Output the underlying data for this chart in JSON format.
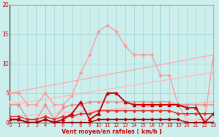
{
  "xlabel": "Vent moyen/en rafales ( km/h )",
  "xlim": [
    0,
    23
  ],
  "ylim": [
    0,
    20
  ],
  "xticks": [
    0,
    1,
    2,
    3,
    4,
    5,
    6,
    7,
    8,
    9,
    10,
    11,
    12,
    13,
    14,
    15,
    16,
    17,
    18,
    19,
    20,
    21,
    22,
    23
  ],
  "yticks": [
    0,
    5,
    10,
    15,
    20
  ],
  "bg_color": "#cceeed",
  "grid_color": "#aadddd",
  "series": [
    {
      "x": [
        0,
        23
      ],
      "y": [
        5.0,
        11.5
      ],
      "color": "#ffaaaa",
      "lw": 1.0,
      "marker": null,
      "ms": 0,
      "zorder": 2
    },
    {
      "x": [
        0,
        23
      ],
      "y": [
        3.0,
        8.5
      ],
      "color": "#ffbbbb",
      "lw": 1.0,
      "marker": null,
      "ms": 0,
      "zorder": 2
    },
    {
      "x": [
        0,
        23
      ],
      "y": [
        1.0,
        3.5
      ],
      "color": "#ffbbbb",
      "lw": 1.0,
      "marker": null,
      "ms": 0,
      "zorder": 2
    },
    {
      "x": [
        0,
        1,
        2,
        3,
        4,
        5,
        6,
        7,
        8,
        9,
        10,
        11,
        12,
        13,
        14,
        15,
        16,
        17,
        18,
        19,
        20,
        21,
        22,
        23
      ],
      "y": [
        5.0,
        5.0,
        3.0,
        3.0,
        5.0,
        3.0,
        3.0,
        4.5,
        8.5,
        11.5,
        15.5,
        16.5,
        15.5,
        13.0,
        11.5,
        11.5,
        11.5,
        8.0,
        8.0,
        3.0,
        0.5,
        0.5,
        0.5,
        11.5
      ],
      "color": "#ff9999",
      "lw": 1.0,
      "marker": "D",
      "ms": 2.0,
      "zorder": 3
    },
    {
      "x": [
        0,
        1,
        2,
        3,
        4,
        5,
        6,
        7,
        8,
        9,
        10,
        11,
        12,
        13,
        14,
        15,
        16,
        17,
        18,
        19,
        20,
        21,
        22,
        23
      ],
      "y": [
        3.0,
        3.0,
        0.5,
        0.5,
        3.0,
        0.5,
        2.5,
        3.0,
        3.0,
        3.5,
        3.5,
        3.5,
        3.5,
        3.5,
        3.5,
        3.5,
        3.5,
        3.5,
        3.5,
        3.0,
        3.0,
        3.0,
        3.0,
        3.0
      ],
      "color": "#ee8888",
      "lw": 1.0,
      "marker": "D",
      "ms": 2.0,
      "zorder": 4
    },
    {
      "x": [
        0,
        1,
        2,
        3,
        4,
        5,
        6,
        7,
        8,
        9,
        10,
        11,
        12,
        13,
        14,
        15,
        16,
        17,
        18,
        19,
        20,
        21,
        22,
        23
      ],
      "y": [
        1.0,
        1.0,
        0.5,
        0.5,
        1.0,
        0.5,
        1.0,
        1.0,
        1.5,
        1.5,
        2.0,
        2.0,
        2.0,
        2.0,
        2.0,
        2.0,
        2.0,
        2.0,
        2.0,
        1.5,
        1.5,
        1.5,
        1.5,
        1.5
      ],
      "color": "#dd3333",
      "lw": 1.2,
      "marker": "D",
      "ms": 2.0,
      "zorder": 5
    },
    {
      "x": [
        0,
        1,
        2,
        3,
        4,
        5,
        6,
        7,
        8,
        9,
        10,
        11,
        12,
        13,
        14,
        15,
        16,
        17,
        18,
        19,
        20,
        21,
        22,
        23
      ],
      "y": [
        0.5,
        0.5,
        0.0,
        0.0,
        0.5,
        0.0,
        0.5,
        1.5,
        3.5,
        0.5,
        1.5,
        5.0,
        5.0,
        3.5,
        3.0,
        3.0,
        3.0,
        3.0,
        3.0,
        3.0,
        2.5,
        2.5,
        0.0,
        0.0
      ],
      "color": "#cc0000",
      "lw": 1.5,
      "marker": "^",
      "ms": 3.0,
      "zorder": 6
    },
    {
      "x": [
        0,
        1,
        2,
        3,
        4,
        5,
        6,
        7,
        8,
        9,
        10,
        11,
        12,
        13,
        14,
        15,
        16,
        17,
        18,
        19,
        20,
        21,
        22,
        23
      ],
      "y": [
        0.5,
        0.5,
        0.0,
        0.0,
        0.5,
        0.0,
        0.0,
        0.0,
        0.0,
        0.0,
        0.5,
        0.5,
        0.5,
        0.5,
        0.5,
        0.5,
        0.5,
        0.5,
        0.5,
        0.5,
        0.0,
        0.0,
        0.0,
        1.5
      ],
      "color": "#aa0000",
      "lw": 1.2,
      "marker": "D",
      "ms": 2.0,
      "zorder": 7
    },
    {
      "x": [
        0,
        1,
        2,
        3,
        4,
        5,
        6,
        7,
        8,
        9,
        10,
        11,
        12,
        13,
        14,
        15,
        16,
        17,
        18,
        19,
        20,
        21,
        22,
        23
      ],
      "y": [
        3.5,
        3.5,
        2.5,
        2.5,
        3.0,
        2.5,
        1.5,
        1.0,
        0.5,
        0.5,
        0.5,
        0.5,
        0.5,
        0.5,
        0.5,
        0.5,
        0.5,
        0.5,
        0.5,
        0.5,
        0.5,
        0.5,
        0.0,
        0.5
      ],
      "color": "#ffcccc",
      "lw": 0.9,
      "marker": "D",
      "ms": 1.8,
      "zorder": 3
    }
  ]
}
